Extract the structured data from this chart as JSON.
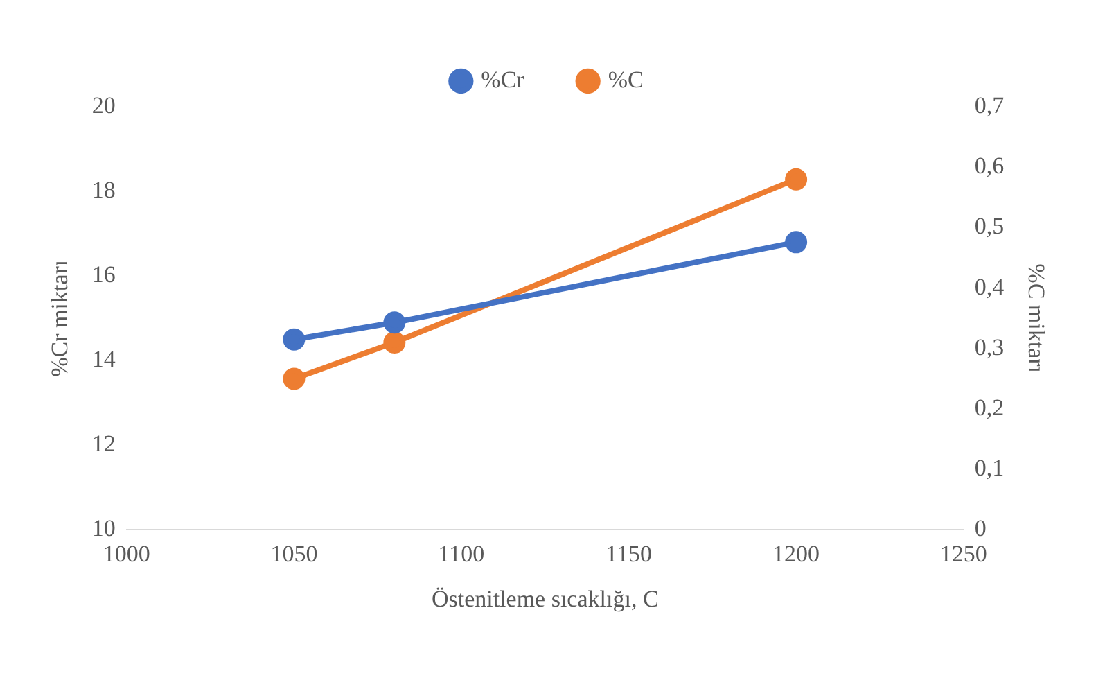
{
  "chart_data": {
    "type": "line",
    "xlabel": "Östenitleme sıcaklığı, C",
    "ylabel": "%Cr miktarı",
    "y2label": "%C miktarı",
    "xlim": [
      1000,
      1250
    ],
    "xticks": [
      1000,
      1050,
      1100,
      1150,
      1200,
      1250
    ],
    "ylim": [
      10,
      20
    ],
    "yticks": [
      10,
      12,
      14,
      16,
      18,
      20
    ],
    "y2lim": [
      0,
      0.7
    ],
    "y2ticks": [
      {
        "value": 0,
        "label": "0"
      },
      {
        "value": 0.1,
        "label": "0,1"
      },
      {
        "value": 0.2,
        "label": "0,2"
      },
      {
        "value": 0.3,
        "label": "0,3"
      },
      {
        "value": 0.4,
        "label": "0,4"
      },
      {
        "value": 0.5,
        "label": "0,5"
      },
      {
        "value": 0.6,
        "label": "0,6"
      },
      {
        "value": 0.7,
        "label": "0,7"
      }
    ],
    "x": [
      1050,
      1080,
      1200
    ],
    "series": [
      {
        "name": "%Cr",
        "color": "#4472c4",
        "values": [
          14.5,
          14.9,
          16.8
        ]
      },
      {
        "name": "%C",
        "color": "#ed7d31",
        "values": [
          0.25,
          0.31,
          0.58
        ],
        "axis": "y2"
      }
    ],
    "legend": "top",
    "grid": false,
    "marker": "circle",
    "line_style": "solid"
  }
}
